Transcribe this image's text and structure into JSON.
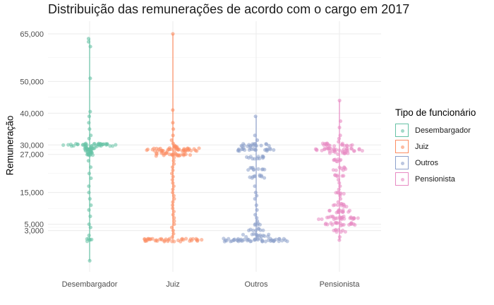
{
  "chart_data": {
    "type": "scatter",
    "title": "Distribuição das remunerações de acordo com o cargo em 2017",
    "xlabel": "",
    "ylabel": "Remuneração",
    "ylim": [
      -10000,
      69000
    ],
    "grid": true,
    "legend_position": "right",
    "legend_title": "Tipo  de funcionário",
    "categories": [
      "Desembargador",
      "Juiz",
      "Outros",
      "Pensionista"
    ],
    "y_ticks": [
      3000,
      5000,
      15000,
      27000,
      30000,
      40000,
      50000,
      65000
    ],
    "y_tick_labels": [
      "3,000",
      "5,000",
      "15,000",
      "27,000",
      "30,000",
      "40,000",
      "50,000",
      "65,000"
    ],
    "series": [
      {
        "name": "Desembargador",
        "color": "#66c2a5",
        "min": -6500,
        "max": 63500,
        "clusters": [
          {
            "value": 30000,
            "spread": 0.33,
            "count": 40
          },
          {
            "value": 29000,
            "spread": 0.06,
            "count": 15
          },
          {
            "value": 28000,
            "spread": 0.05,
            "count": 12
          },
          {
            "value": 27000,
            "spread": 0.04,
            "count": 8
          },
          {
            "value": 0,
            "spread": 0.04,
            "count": 6
          }
        ],
        "outliers": [
          63500,
          62500,
          61000,
          51000,
          40500,
          39000,
          37000,
          35000,
          33000,
          32000,
          25000,
          23000,
          21000,
          19500,
          17000,
          15000,
          13000,
          11000,
          9500,
          7500,
          5000,
          4000,
          1500,
          -6500
        ]
      },
      {
        "name": "Juiz",
        "color": "#fc8d62",
        "min": 0,
        "max": 65000,
        "clusters": [
          {
            "value": 28500,
            "spread": 0.33,
            "count": 40
          },
          {
            "value": 27000,
            "spread": 0.22,
            "count": 25
          },
          {
            "value": 29500,
            "spread": 0.05,
            "count": 8
          },
          {
            "value": 0,
            "spread": 0.35,
            "count": 40
          }
        ],
        "outliers": [
          65000,
          41000,
          37000,
          35000,
          33000,
          31500,
          30500,
          26000,
          25000,
          24000,
          23000,
          22000,
          21000,
          20000,
          19000,
          18000,
          17000,
          16000,
          15000,
          14000,
          13000,
          12000,
          11000,
          10000,
          9000,
          8000,
          7000,
          6000,
          5000,
          4000,
          3000,
          2000,
          1000
        ]
      },
      {
        "name": "Outros",
        "color": "#8da0cb",
        "min": 0,
        "max": 39000,
        "clusters": [
          {
            "value": 30000,
            "spread": 0.18,
            "count": 18
          },
          {
            "value": 28500,
            "spread": 0.22,
            "count": 22
          },
          {
            "value": 26000,
            "spread": 0.12,
            "count": 12
          },
          {
            "value": 22500,
            "spread": 0.1,
            "count": 10
          },
          {
            "value": 20000,
            "spread": 0.1,
            "count": 10
          },
          {
            "value": 3500,
            "spread": 0.09,
            "count": 8
          },
          {
            "value": 5000,
            "spread": 0.05,
            "count": 5
          },
          {
            "value": 1500,
            "spread": 0.18,
            "count": 14
          },
          {
            "value": 0,
            "spread": 0.4,
            "count": 50
          }
        ],
        "outliers": [
          39000,
          33000,
          31500,
          17000,
          15000,
          14000,
          13000,
          11000,
          9500,
          8000,
          7000,
          6000
        ]
      },
      {
        "name": "Pensionista",
        "color": "#e78ac3",
        "min": 0,
        "max": 44000,
        "clusters": [
          {
            "value": 30000,
            "spread": 0.2,
            "count": 18
          },
          {
            "value": 28500,
            "spread": 0.3,
            "count": 30
          },
          {
            "value": 27500,
            "spread": 0.12,
            "count": 10
          },
          {
            "value": 25000,
            "spread": 0.08,
            "count": 8
          },
          {
            "value": 22500,
            "spread": 0.08,
            "count": 8
          },
          {
            "value": 20500,
            "spread": 0.06,
            "count": 6
          },
          {
            "value": 15000,
            "spread": 0.06,
            "count": 6
          },
          {
            "value": 11000,
            "spread": 0.09,
            "count": 10
          },
          {
            "value": 9000,
            "spread": 0.13,
            "count": 14
          },
          {
            "value": 7000,
            "spread": 0.25,
            "count": 26
          },
          {
            "value": 5000,
            "spread": 0.2,
            "count": 20
          },
          {
            "value": 3000,
            "spread": 0.08,
            "count": 8
          }
        ],
        "outliers": [
          44000,
          37500,
          35500,
          33000,
          32000,
          31000,
          19000,
          18000,
          17000,
          16000,
          14000,
          13000,
          12000,
          1000,
          0
        ]
      }
    ]
  }
}
